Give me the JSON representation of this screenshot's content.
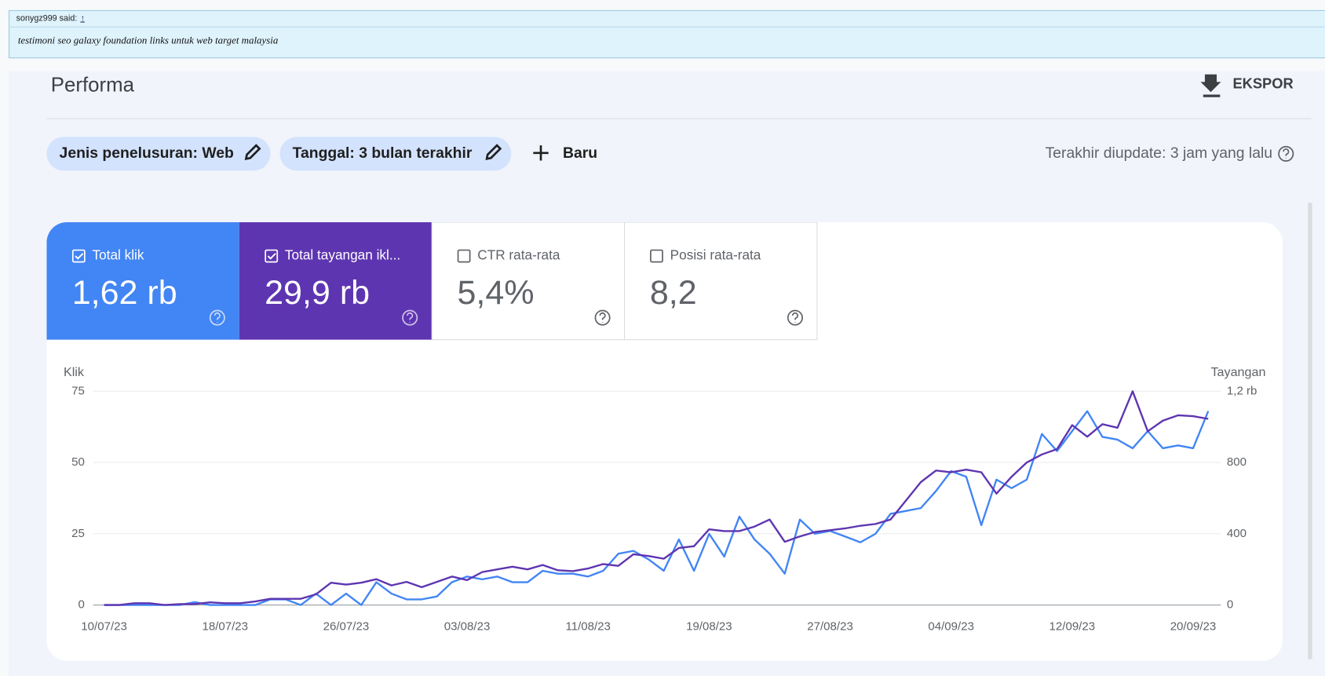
{
  "post": {
    "author": "sonygz999 said:",
    "link": "↑",
    "text": "testimoni seo galaxy foundation links untuk web target malaysia"
  },
  "header": {
    "title": "Performa",
    "export": "EKSPOR"
  },
  "filters": [
    "Jenis penelusuran: Web",
    "Tanggal: 3 bulan terakhir"
  ],
  "new": "Baru",
  "updated": "Terakhir diupdate: 3 jam yang lalu",
  "metrics": [
    {
      "label": "Total klik",
      "value": "1,62 rb",
      "checked": true,
      "color": "#4285f4"
    },
    {
      "label": "Total tayangan ikl...",
      "value": "29,9 rb",
      "checked": true,
      "color": "#5e35b1"
    },
    {
      "label": "CTR rata-rata",
      "value": "5,4%",
      "checked": false,
      "color": "#ffffff"
    },
    {
      "label": "Posisi rata-rata",
      "value": "8,2",
      "checked": false,
      "color": "#ffffff"
    }
  ],
  "chart_data": {
    "type": "line",
    "ylabel": "Klik",
    "y2label": "Tayangan",
    "categories": [
      "10/07/23",
      null,
      null,
      null,
      null,
      null,
      null,
      null,
      "18/07/23",
      null,
      null,
      null,
      null,
      null,
      null,
      null,
      "26/07/23",
      null,
      null,
      null,
      null,
      null,
      null,
      null,
      "03/08/23",
      null,
      null,
      null,
      null,
      null,
      null,
      null,
      "11/08/23",
      null,
      null,
      null,
      null,
      null,
      null,
      null,
      "19/08/23",
      null,
      null,
      null,
      null,
      null,
      null,
      null,
      "27/08/23",
      null,
      null,
      null,
      null,
      null,
      null,
      null,
      "04/09/23",
      null,
      null,
      null,
      null,
      null,
      null,
      null,
      "12/09/23",
      null,
      null,
      null,
      null,
      null,
      null,
      null,
      "20/09/23",
      null
    ],
    "series": [
      {
        "color": "#4285f4",
        "axis": "y",
        "values": [
          0,
          0,
          0,
          0,
          0,
          0,
          1,
          0,
          0,
          0,
          0,
          2,
          2,
          0,
          4,
          0,
          4,
          0,
          8,
          4,
          2,
          2,
          3,
          8,
          10,
          9,
          10,
          8,
          8,
          12,
          11,
          11,
          10,
          12,
          18,
          19,
          16,
          12,
          23,
          12,
          25,
          17,
          31,
          23,
          18,
          11,
          30,
          25,
          26,
          24,
          22,
          25,
          32,
          33,
          34,
          40,
          47,
          45,
          28,
          44,
          41,
          44,
          60,
          54,
          61,
          68,
          59,
          58,
          55,
          61,
          55,
          56,
          55,
          68
        ]
      },
      {
        "color": "#5e35b1",
        "axis": "y2",
        "values": [
          0,
          0,
          10,
          10,
          0,
          5,
          5,
          15,
          10,
          10,
          20,
          35,
          35,
          35,
          60,
          125,
          115,
          125,
          145,
          110,
          130,
          100,
          130,
          160,
          140,
          185,
          200,
          215,
          200,
          225,
          195,
          190,
          205,
          230,
          220,
          285,
          275,
          260,
          320,
          330,
          425,
          415,
          415,
          440,
          480,
          355,
          385,
          410,
          420,
          430,
          445,
          455,
          480,
          585,
          690,
          755,
          745,
          760,
          745,
          625,
          720,
          800,
          845,
          875,
          1010,
          945,
          1015,
          995,
          1200,
          975,
          1035,
          1065,
          1060,
          1045
        ]
      }
    ],
    "ylim": [
      0,
      75
    ],
    "yticks": [
      0,
      25,
      50,
      75
    ],
    "y2lim": [
      0,
      1200
    ],
    "y2ticks": [
      0,
      400,
      800,
      {
        "value": 1200,
        "label": "1,2 rb"
      }
    ],
    "grid": true
  }
}
